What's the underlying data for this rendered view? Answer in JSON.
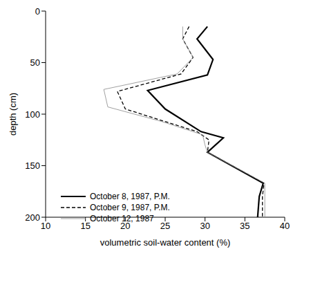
{
  "chart_data": {
    "type": "line",
    "x_label": "volumetric soil-water content (%)",
    "y_label": "depth (cm)",
    "xlim": [
      10,
      40
    ],
    "xticks": [
      10,
      15,
      20,
      25,
      30,
      35,
      40
    ],
    "ylim": [
      0,
      200
    ],
    "yticks": [
      0,
      50,
      100,
      150,
      200
    ],
    "grid": false,
    "legend": "lower left",
    "series": [
      {
        "name": "October 8, 1987, P.M.",
        "color": "#000000",
        "line_style": "solid",
        "x": [
          30.3,
          29.0,
          31.0,
          30.3,
          22.8,
          25.0,
          29.5,
          32.3,
          30.3,
          37.3,
          36.8,
          36.6
        ],
        "y": [
          15,
          27,
          47,
          62,
          77,
          95,
          117,
          123,
          137,
          167,
          180,
          200
        ]
      },
      {
        "name": "October 9, 1987, P.M.",
        "color": "#000000",
        "line_style": "dashed",
        "x": [
          28.0,
          27.2,
          28.5,
          27.0,
          19.0,
          20.0,
          29.0,
          30.5,
          30.3,
          37.4,
          37.2,
          37.2
        ],
        "y": [
          15,
          27,
          45,
          61,
          78,
          95,
          117,
          125,
          137,
          167,
          180,
          200
        ]
      },
      {
        "name": "October 12, 1987",
        "color": "#888888",
        "line_style": "solid",
        "x": [
          27.2,
          27.2,
          28.5,
          26.5,
          17.3,
          17.8,
          24.5,
          29.7,
          30.0,
          30.3,
          37.5,
          37.5,
          37.5
        ],
        "y": [
          15,
          27,
          45,
          61,
          76,
          93,
          107,
          120,
          130,
          137,
          167,
          180,
          200
        ]
      }
    ]
  }
}
